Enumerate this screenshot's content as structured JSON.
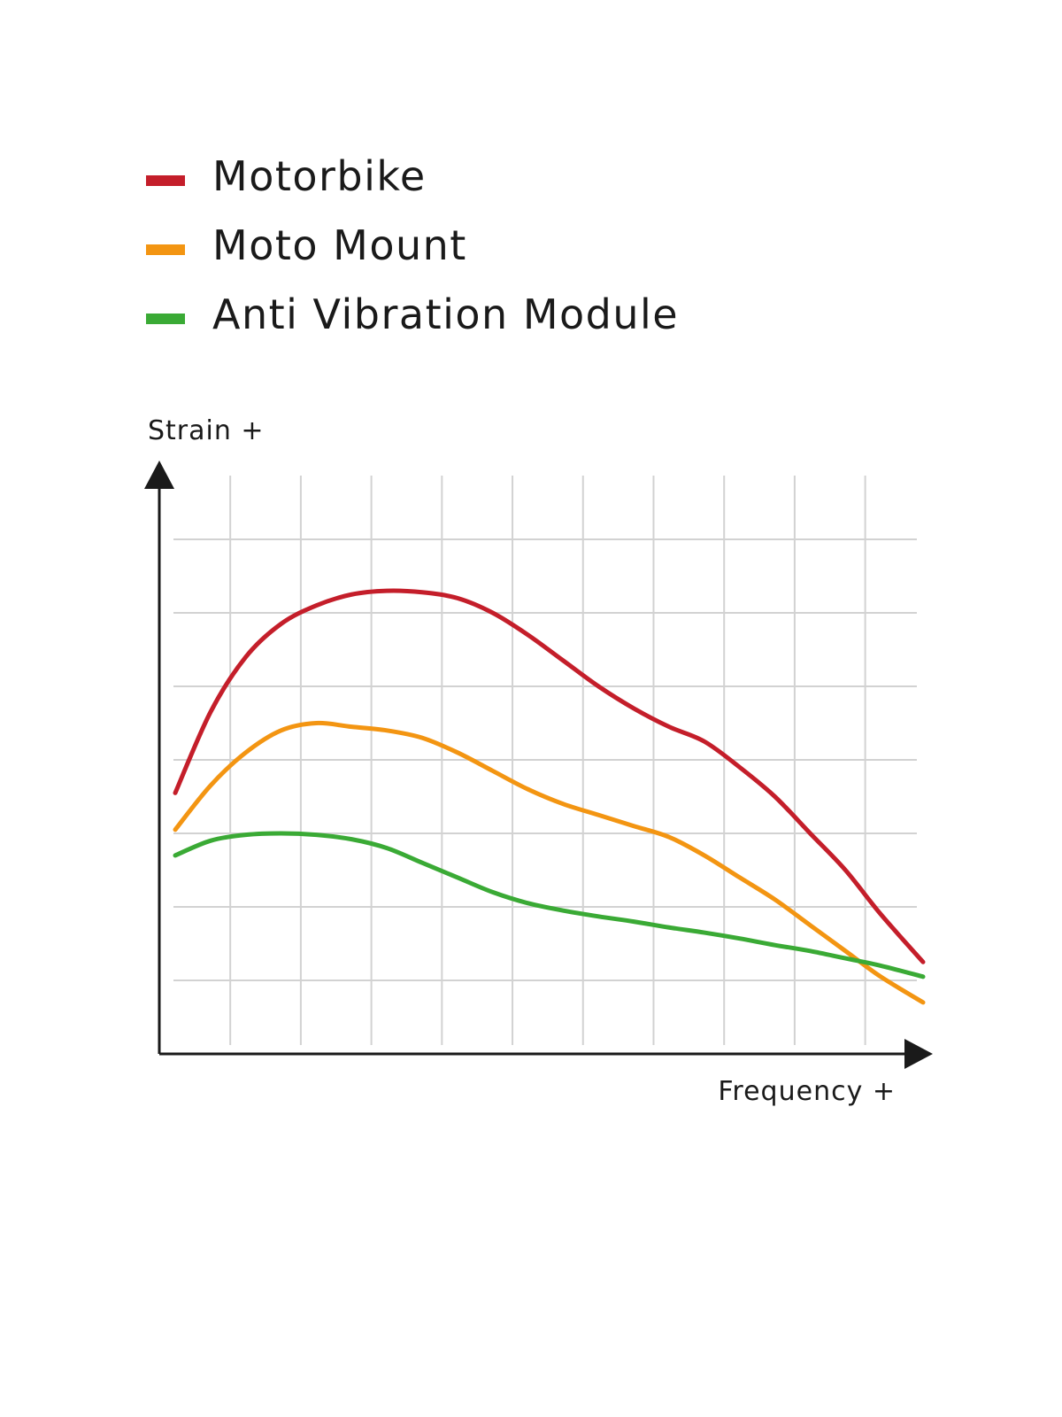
{
  "chart_data": {
    "type": "line",
    "xlabel": "Frequency +",
    "ylabel": "Strain +",
    "xlim": [
      0,
      10.6
    ],
    "ylim": [
      0,
      8
    ],
    "grid": true,
    "legend_position": "top-left",
    "series": [
      {
        "name": "Motorbike",
        "color": "#c41e2a",
        "x": [
          0,
          0.5,
          1,
          1.5,
          2,
          2.5,
          3,
          3.5,
          4,
          4.5,
          5,
          5.5,
          6,
          6.5,
          7,
          7.5,
          8,
          8.5,
          9,
          9.5,
          10,
          10.6
        ],
        "y": [
          3.55,
          4.65,
          5.4,
          5.85,
          6.1,
          6.25,
          6.3,
          6.28,
          6.2,
          6.0,
          5.7,
          5.35,
          5.0,
          4.7,
          4.45,
          4.25,
          3.9,
          3.5,
          3.0,
          2.5,
          1.9,
          1.25
        ]
      },
      {
        "name": "Moto Mount",
        "color": "#f39512",
        "x": [
          0,
          0.5,
          1,
          1.5,
          2,
          2.5,
          3,
          3.5,
          4,
          4.5,
          5,
          5.5,
          6,
          6.5,
          7,
          7.5,
          8,
          8.5,
          9,
          9.5,
          10,
          10.6
        ],
        "y": [
          3.05,
          3.65,
          4.1,
          4.4,
          4.5,
          4.45,
          4.4,
          4.3,
          4.1,
          3.85,
          3.6,
          3.4,
          3.25,
          3.1,
          2.95,
          2.7,
          2.4,
          2.1,
          1.75,
          1.4,
          1.05,
          0.7
        ]
      },
      {
        "name": "Anti Vibration Module",
        "color": "#3aaa35",
        "x": [
          0,
          0.5,
          1,
          1.5,
          2,
          2.5,
          3,
          3.5,
          4,
          4.5,
          5,
          5.5,
          6,
          6.5,
          7,
          7.5,
          8,
          8.5,
          9,
          9.5,
          10,
          10.6
        ],
        "y": [
          2.7,
          2.9,
          2.98,
          3.0,
          2.98,
          2.92,
          2.8,
          2.6,
          2.4,
          2.2,
          2.05,
          1.95,
          1.87,
          1.8,
          1.72,
          1.65,
          1.57,
          1.48,
          1.4,
          1.3,
          1.2,
          1.05
        ]
      }
    ]
  }
}
